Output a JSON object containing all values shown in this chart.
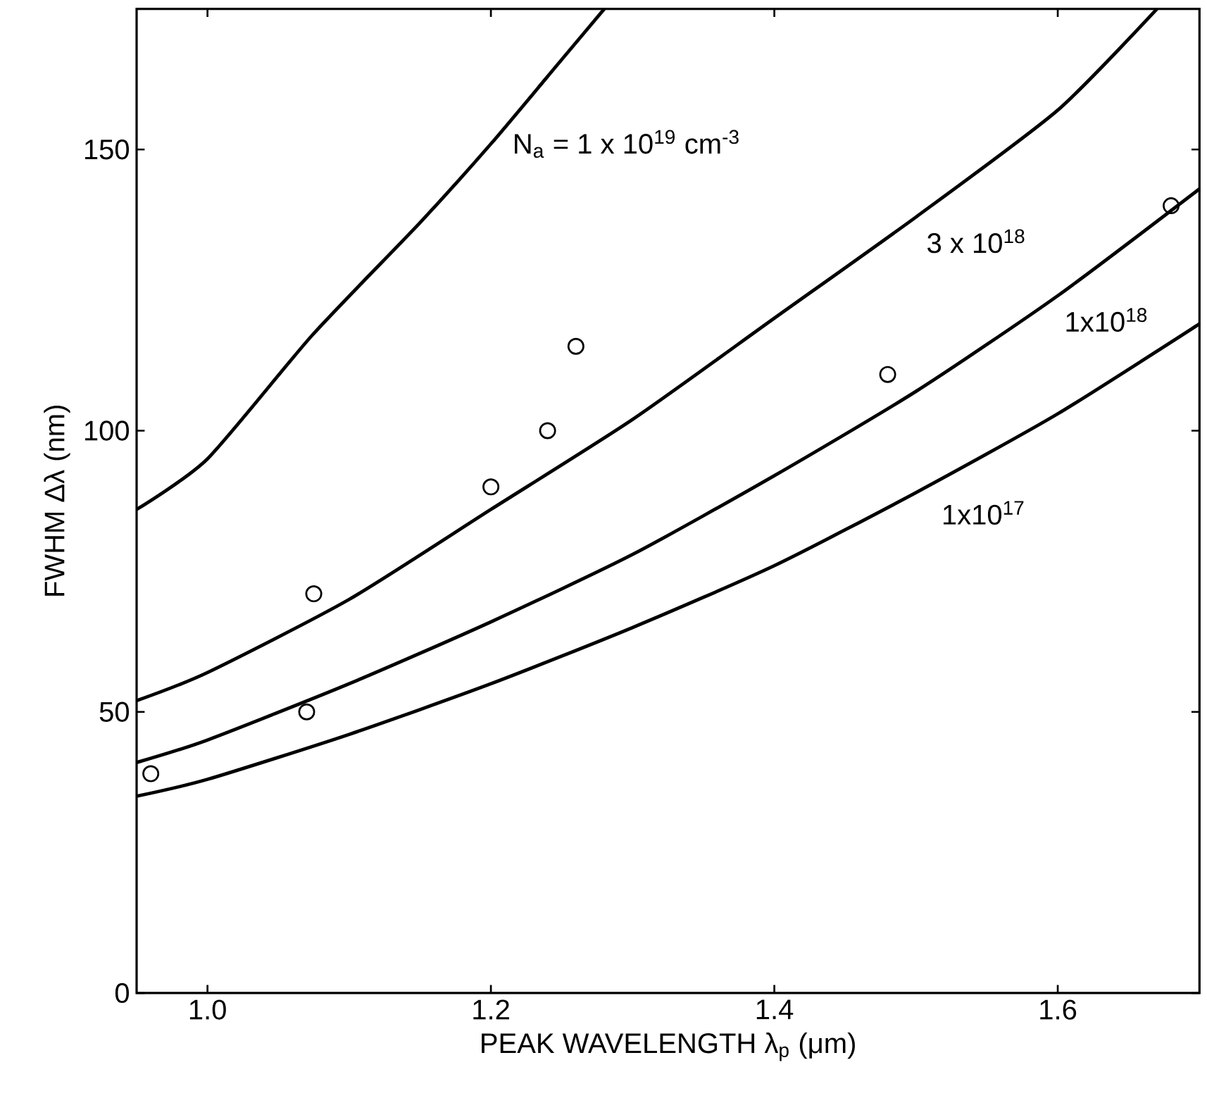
{
  "chart_data": {
    "type": "line",
    "xlabel": "PEAK WAVELENGTH λ$_{p}$ (μm)",
    "ylabel": "FWHM Δλ (nm)",
    "xlim": [
      0.95,
      1.7
    ],
    "ylim": [
      0,
      175
    ],
    "xticks": [
      {
        "value": 1.0,
        "label": "1.0"
      },
      {
        "value": 1.2,
        "label": "1.2"
      },
      {
        "value": 1.4,
        "label": "1.4"
      },
      {
        "value": 1.6,
        "label": "1.6"
      }
    ],
    "yticks": [
      0,
      50,
      100,
      150
    ],
    "grid": false,
    "series": [
      {
        "name": "N$_{a}$ = 1 x 10$^{19}$ cm$^{-3}$",
        "color": "#000000",
        "marker": "none",
        "line_style": "solid",
        "x": [
          0.95,
          1.0,
          1.074,
          1.15,
          1.2,
          1.25,
          1.28
        ],
        "values": [
          86,
          95,
          117,
          137,
          151,
          166,
          175
        ]
      },
      {
        "name": "3 x 10$^{18}$",
        "color": "#000000",
        "marker": "none",
        "line_style": "solid",
        "x": [
          0.95,
          1.0,
          1.1,
          1.2,
          1.3,
          1.4,
          1.5,
          1.6,
          1.67
        ],
        "values": [
          52,
          57,
          70,
          86,
          102,
          120,
          138,
          157,
          175
        ]
      },
      {
        "name": "1x10$^{18}$",
        "color": "#000000",
        "marker": "none",
        "line_style": "solid",
        "x": [
          0.95,
          1.0,
          1.1,
          1.2,
          1.3,
          1.4,
          1.5,
          1.6,
          1.7
        ],
        "values": [
          41,
          45,
          55,
          66,
          78,
          92,
          107,
          124,
          143
        ]
      },
      {
        "name": "1x10$^{17}$",
        "color": "#000000",
        "marker": "none",
        "line_style": "solid",
        "x": [
          0.95,
          1.0,
          1.1,
          1.2,
          1.3,
          1.4,
          1.5,
          1.6,
          1.7
        ],
        "values": [
          35,
          38,
          46,
          55,
          65,
          76,
          89,
          103,
          119
        ]
      },
      {
        "type": "scatter",
        "color": "#000000",
        "marker": "circle",
        "x": [
          0.96,
          1.07,
          1.075,
          1.2,
          1.24,
          1.26,
          1.48,
          1.68
        ],
        "values": [
          39,
          50,
          71,
          90,
          100,
          115,
          110,
          140
        ]
      }
    ]
  }
}
